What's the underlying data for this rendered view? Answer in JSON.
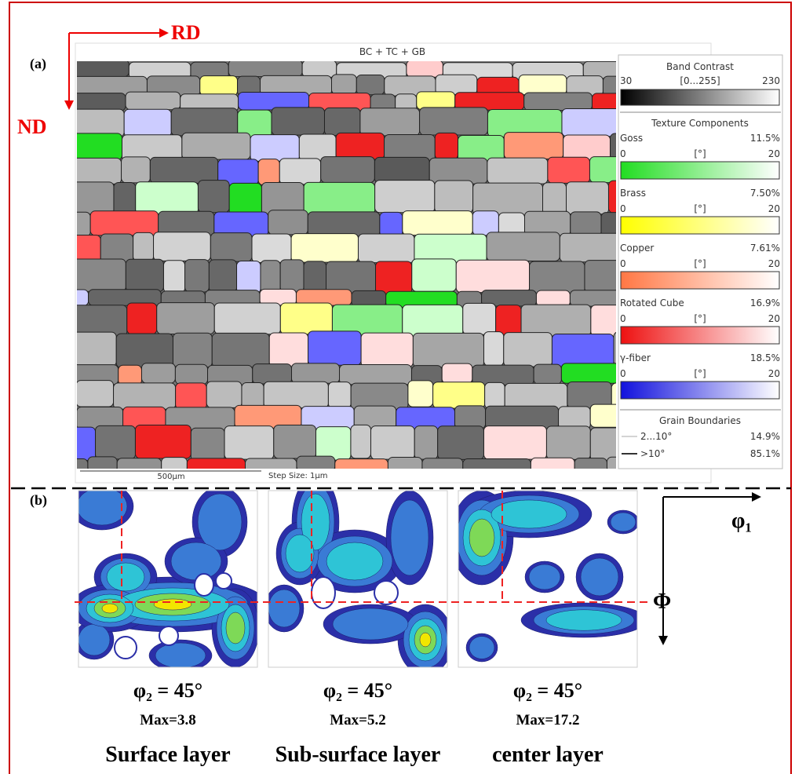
{
  "panel_a": {
    "label": "(a)",
    "rd": "RD",
    "nd": "ND",
    "map_title": "BC + TC + GB",
    "scale_bar": "500μm",
    "step_size": "Step Size: 1μm",
    "legend": {
      "band_contrast": {
        "title": "Band Contrast",
        "min": "30",
        "range": "[0...255]",
        "max": "230"
      },
      "texture_title": "Texture Components",
      "components": [
        {
          "name": "Goss",
          "fraction": "11.5%",
          "min": "0",
          "unit": "[°]",
          "max": "20"
        },
        {
          "name": "Brass",
          "fraction": "7.50%",
          "min": "0",
          "unit": "[°]",
          "max": "20"
        },
        {
          "name": "Copper",
          "fraction": "7.61%",
          "min": "0",
          "unit": "[°]",
          "max": "20"
        },
        {
          "name": "Rotated Cube",
          "fraction": "16.9%",
          "min": "0",
          "unit": "[°]",
          "max": "20"
        },
        {
          "name": "γ-fiber",
          "fraction": "18.5%",
          "min": "0",
          "unit": "[°]",
          "max": "20"
        }
      ],
      "boundaries_title": "Grain Boundaries",
      "boundaries": [
        {
          "name": "2...10°",
          "fraction": "14.9%"
        },
        {
          "name": ">10°",
          "fraction": "85.1%"
        }
      ]
    }
  },
  "panel_b": {
    "label": "(b)",
    "axis_x": "φ₁",
    "axis_y": "Φ",
    "odfs": [
      {
        "section": "φ₂ = 45°",
        "max": "Max=3.8",
        "layer": "Surface layer"
      },
      {
        "section": "φ₂ = 45°",
        "max": "Max=5.2",
        "layer": "Sub-surface layer"
      },
      {
        "section": "φ₂ = 45°",
        "max": "Max=17.2",
        "layer": "center layer"
      }
    ]
  }
}
